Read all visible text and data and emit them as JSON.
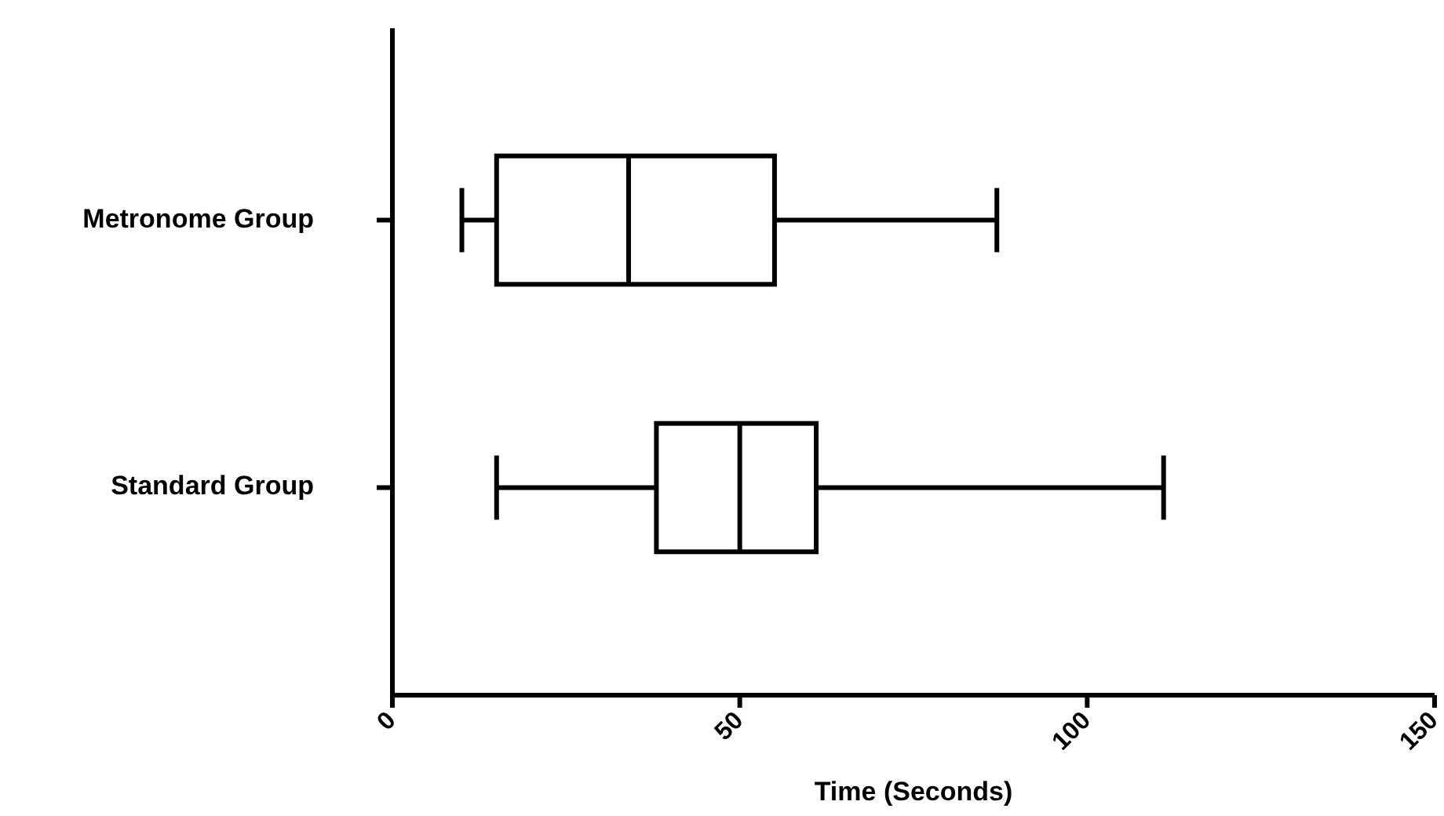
{
  "chart_data": {
    "type": "box",
    "orientation": "horizontal",
    "categories": [
      "Metronome Group",
      "Standard Group"
    ],
    "boxes": [
      {
        "low": 10,
        "q1": 15,
        "median": 34,
        "q3": 55,
        "high": 87
      },
      {
        "low": 15,
        "q1": 38,
        "median": 50,
        "q3": 61,
        "high": 111
      }
    ],
    "xlim": [
      0,
      150
    ],
    "xticks": [
      0,
      50,
      100,
      150
    ],
    "xlabel": "Time (Seconds)",
    "grid": false
  }
}
